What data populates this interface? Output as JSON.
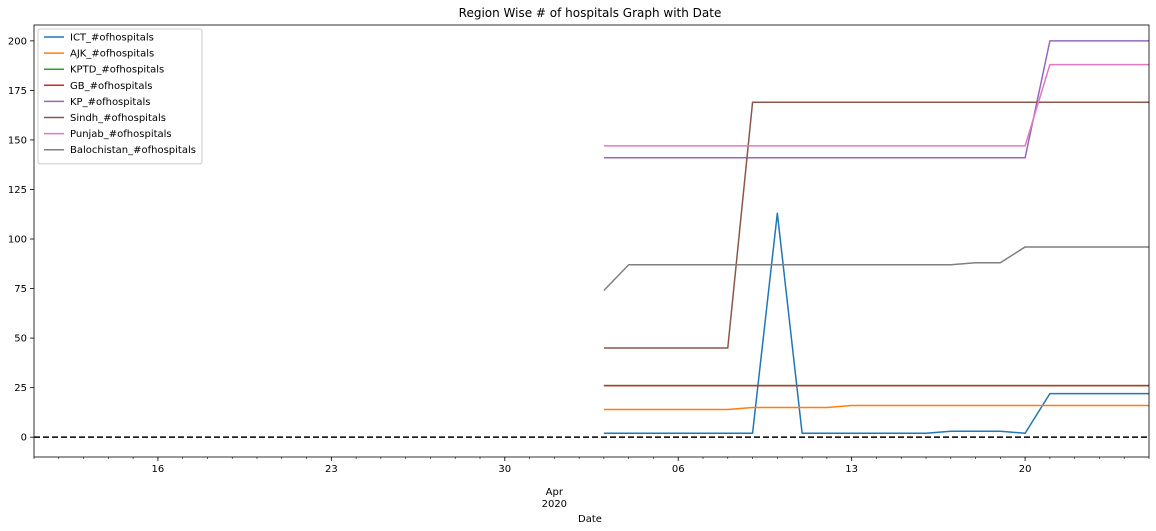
{
  "chart_data": {
    "type": "line",
    "title": "Region Wise # of hospitals Graph with Date",
    "xlabel": "Date",
    "ylabel": "",
    "x_axis": {
      "type": "date",
      "range": [
        "2020-03-11",
        "2020-04-25"
      ],
      "major_ticks": [
        "2020-03-16",
        "2020-03-23",
        "2020-03-30",
        "2020-04-06",
        "2020-04-13",
        "2020-04-20"
      ],
      "major_tick_labels": [
        "16",
        "23",
        "30",
        "06",
        "13",
        "20"
      ],
      "month_label": "Apr",
      "year_label": "2020"
    },
    "ylim": [
      -10,
      208
    ],
    "yticks": [
      0,
      25,
      50,
      75,
      100,
      125,
      150,
      175,
      200
    ],
    "grid": false,
    "legend_position": "top-left",
    "reference_line": {
      "y": 0,
      "style": "dashed",
      "color": "#000000"
    },
    "x": [
      "2020-04-03",
      "2020-04-04",
      "2020-04-05",
      "2020-04-06",
      "2020-04-07",
      "2020-04-08",
      "2020-04-09",
      "2020-04-10",
      "2020-04-11",
      "2020-04-12",
      "2020-04-13",
      "2020-04-14",
      "2020-04-15",
      "2020-04-16",
      "2020-04-17",
      "2020-04-18",
      "2020-04-19",
      "2020-04-20",
      "2020-04-21",
      "2020-04-22",
      "2020-04-23",
      "2020-04-24",
      "2020-04-25"
    ],
    "series": [
      {
        "name": "ICT_#ofhospitals",
        "color": "#1f77b4",
        "values": [
          2,
          2,
          2,
          2,
          2,
          2,
          2,
          113,
          2,
          2,
          2,
          2,
          2,
          2,
          3,
          3,
          3,
          2,
          22,
          22,
          22,
          22,
          22
        ]
      },
      {
        "name": "AJK_#ofhospitals",
        "color": "#ff7f0e",
        "values": [
          14,
          14,
          14,
          14,
          14,
          14,
          15,
          15,
          15,
          15,
          16,
          16,
          16,
          16,
          16,
          16,
          16,
          16,
          16,
          16,
          16,
          16,
          16
        ]
      },
      {
        "name": "KPTD_#ofhospitals",
        "color": "#2ca02c",
        "values": [
          26,
          26,
          26,
          26,
          26,
          26,
          26,
          26,
          26,
          26,
          26,
          26,
          26,
          26,
          26,
          26,
          26,
          26,
          26,
          26,
          26,
          26,
          26
        ]
      },
      {
        "name": "GB_#ofhospitals",
        "color": "#d62728",
        "values": [
          26,
          26,
          26,
          26,
          26,
          26,
          26,
          26,
          26,
          26,
          26,
          26,
          26,
          26,
          26,
          26,
          26,
          26,
          26,
          26,
          26,
          26,
          26
        ]
      },
      {
        "name": "KP_#ofhospitals",
        "color": "#9467bd",
        "values": [
          141,
          141,
          141,
          141,
          141,
          141,
          141,
          141,
          141,
          141,
          141,
          141,
          141,
          141,
          141,
          141,
          141,
          141,
          200,
          200,
          200,
          200,
          200
        ]
      },
      {
        "name": "Sindh_#ofhospitals",
        "color": "#8c564b",
        "values": [
          45,
          45,
          45,
          45,
          45,
          45,
          169,
          169,
          169,
          169,
          169,
          169,
          169,
          169,
          169,
          169,
          169,
          169,
          169,
          169,
          169,
          169,
          169
        ]
      },
      {
        "name": "Punjab_#ofhospitals",
        "color": "#e377c2",
        "values": [
          147,
          147,
          147,
          147,
          147,
          147,
          147,
          147,
          147,
          147,
          147,
          147,
          147,
          147,
          147,
          147,
          147,
          147,
          188,
          188,
          188,
          188,
          188
        ]
      },
      {
        "name": "Balochistan_#ofhospitals",
        "color": "#7f7f7f",
        "values": [
          74,
          87,
          87,
          87,
          87,
          87,
          87,
          87,
          87,
          87,
          87,
          87,
          87,
          87,
          87,
          88,
          88,
          96,
          96,
          96,
          96,
          96,
          96
        ]
      }
    ]
  }
}
